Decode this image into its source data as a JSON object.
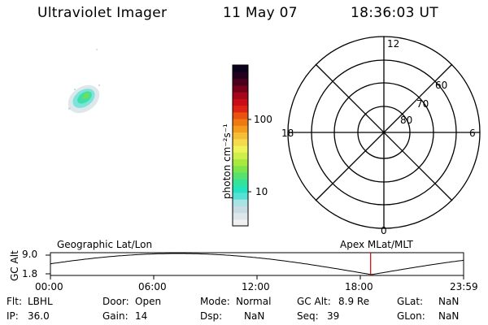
{
  "header": {
    "app_title": "Ultraviolet Imager",
    "date": "11 May 07",
    "time": "18:36:03 UT"
  },
  "colorbar": {
    "unit_label": "photon cm⁻²s⁻¹",
    "ticks": [
      "100",
      "10"
    ],
    "colors": [
      "#f0f0f0",
      "#dde6e8",
      "#c7dde3",
      "#a9e3e6",
      "#57e0d6",
      "#25e2c0",
      "#33e39a",
      "#56e26f",
      "#7ce44c",
      "#a8e83f",
      "#cdee4b",
      "#eef35a",
      "#f5da4c",
      "#f5be38",
      "#f59c1f",
      "#f07a12",
      "#e95210",
      "#de2314",
      "#c90e18",
      "#a4081a",
      "#77001a",
      "#4a001c",
      "#23001e",
      "#0b001e"
    ]
  },
  "polar_plot": {
    "hour_labels": {
      "top": "12",
      "left": "18",
      "right": "6",
      "bottom": "0"
    },
    "lat_labels": [
      "60",
      "70",
      "80"
    ]
  },
  "timeline": {
    "y_axis_title": "GC Alt",
    "y_ticks": [
      "9.0",
      "1.8"
    ],
    "left_caption": "Geographic Lat/Lon",
    "right_caption": "Apex MLat/MLT",
    "x_ticks": [
      "00:00",
      "06:00",
      "12:00",
      "18:00",
      "23:59"
    ],
    "marker_time": "18:36",
    "marker_color": "#cc0000"
  },
  "info": {
    "filter": {
      "label": "Flt:",
      "value": "LBHL"
    },
    "door": {
      "label": "Door:",
      "value": "Open"
    },
    "mode": {
      "label": "Mode:",
      "value": "Normal"
    },
    "gc_alt": {
      "label": "GC Alt:",
      "value": "8.9 Re"
    },
    "glat": {
      "label": "GLat:",
      "value": "NaN"
    },
    "ip": {
      "label": "IP:",
      "value": "36.0"
    },
    "gain": {
      "label": "Gain:",
      "value": "14"
    },
    "dsp": {
      "label": "Dsp:",
      "value": "NaN"
    },
    "seq": {
      "label": "Seq:",
      "value": "39"
    },
    "glon": {
      "label": "GLon:",
      "value": "NaN"
    }
  }
}
